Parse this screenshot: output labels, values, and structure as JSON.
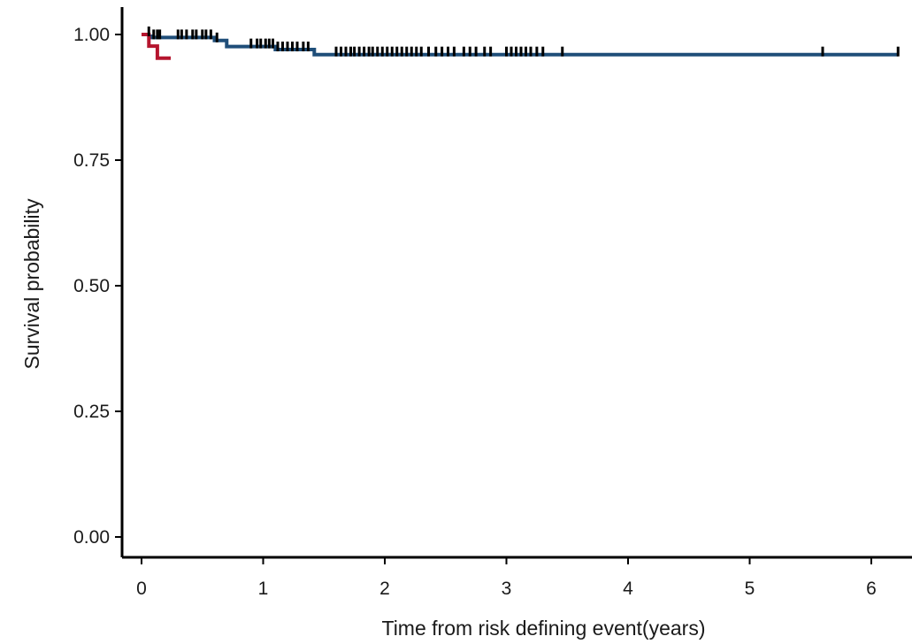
{
  "chart_data": {
    "type": "line",
    "subtype": "kaplan-meier step curve",
    "title": "",
    "xlabel": "Time from risk defining event(years)",
    "ylabel": "Survival probability",
    "xlim": [
      0,
      6.25
    ],
    "ylim": [
      0,
      1.0
    ],
    "x_ticks": [
      "0",
      "1",
      "2",
      "3",
      "4",
      "5",
      "6"
    ],
    "y_ticks": [
      "0.00",
      "0.25",
      "0.50",
      "0.75",
      "1.00"
    ],
    "grid": false,
    "legend": "none",
    "series": [
      {
        "color": "#1f4e79",
        "steps": [
          [
            0.08,
            1.0
          ],
          [
            0.08,
            0.994
          ],
          [
            0.6,
            0.994
          ],
          [
            0.6,
            0.988
          ],
          [
            0.7,
            0.988
          ],
          [
            0.7,
            0.976
          ],
          [
            1.1,
            0.976
          ],
          [
            1.1,
            0.97
          ],
          [
            1.42,
            0.97
          ],
          [
            1.42,
            0.96
          ],
          [
            6.22,
            0.96
          ]
        ],
        "censor_times": [
          0.06,
          0.1,
          0.13,
          0.15,
          0.3,
          0.33,
          0.37,
          0.42,
          0.45,
          0.5,
          0.53,
          0.57,
          0.62,
          0.9,
          0.95,
          0.98,
          1.02,
          1.05,
          1.08,
          1.12,
          1.16,
          1.2,
          1.24,
          1.28,
          1.33,
          1.37,
          1.6,
          1.64,
          1.68,
          1.72,
          1.75,
          1.79,
          1.83,
          1.87,
          1.9,
          1.94,
          1.98,
          2.02,
          2.06,
          2.1,
          2.14,
          2.18,
          2.22,
          2.26,
          2.3,
          2.36,
          2.42,
          2.47,
          2.52,
          2.57,
          2.65,
          2.7,
          2.75,
          2.82,
          2.87,
          3.0,
          3.04,
          3.08,
          3.12,
          3.16,
          3.2,
          3.25,
          3.3,
          3.46,
          5.6,
          6.22
        ]
      },
      {
        "color": "#b5152e",
        "steps": [
          [
            0.0,
            1.0
          ],
          [
            0.06,
            1.0
          ],
          [
            0.06,
            0.977
          ],
          [
            0.13,
            0.977
          ],
          [
            0.13,
            0.953
          ],
          [
            0.24,
            0.953
          ]
        ],
        "censor_times": []
      }
    ]
  }
}
